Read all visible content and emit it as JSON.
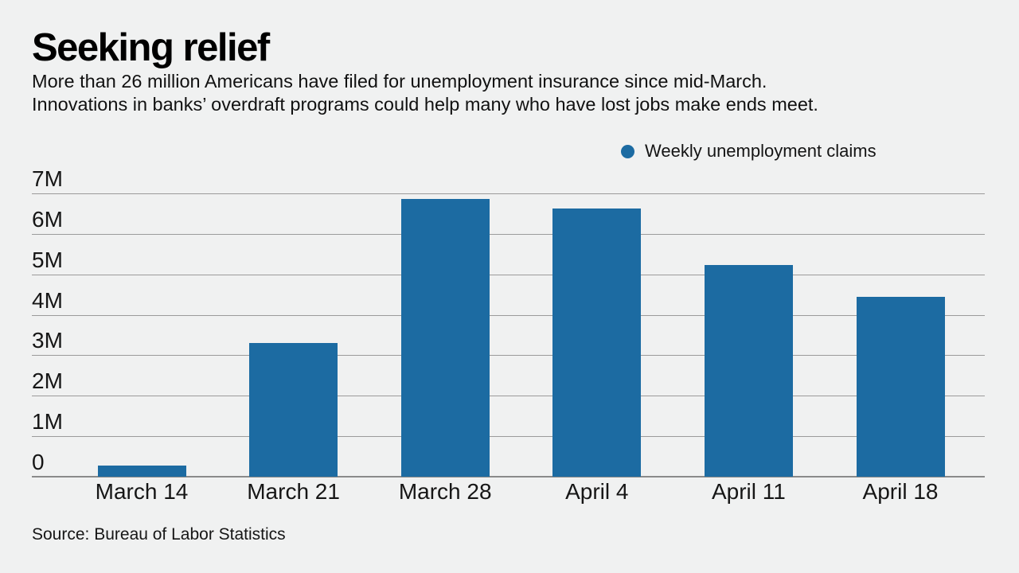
{
  "header": {
    "title": "Seeking relief",
    "subtitle_line1": "More than 26 million Americans have filed for unemployment insurance since mid-March.",
    "subtitle_line2": "Innovations in banks’ overdraft programs could help many who have lost jobs make ends meet."
  },
  "source": "Source: Bureau of Labor Statistics",
  "colors": {
    "background": "#f0f1f1",
    "bar": "#1c6ba2",
    "gridline": "#9b9b9b",
    "baseline": "#8a8a8a",
    "text": "#161616"
  },
  "chart_data": {
    "type": "bar",
    "title": "Seeking relief",
    "legend": "Weekly unemployment claims",
    "legend_position": "top-right",
    "categories": [
      "March 14",
      "March 21",
      "March 28",
      "April 4",
      "April 11",
      "April 18"
    ],
    "values_millions": [
      0.28,
      3.31,
      6.87,
      6.62,
      5.24,
      4.44
    ],
    "xlabel": "",
    "ylabel": "",
    "ylim_millions": [
      0,
      7
    ],
    "grid": true,
    "yticks": [
      {
        "value": 7,
        "label": "7M"
      },
      {
        "value": 6,
        "label": "6M"
      },
      {
        "value": 5,
        "label": "5M"
      },
      {
        "value": 4,
        "label": "4M"
      },
      {
        "value": 3,
        "label": "3M"
      },
      {
        "value": 2,
        "label": "2M"
      },
      {
        "value": 1,
        "label": "1M"
      },
      {
        "value": 0,
        "label": "0"
      }
    ]
  }
}
